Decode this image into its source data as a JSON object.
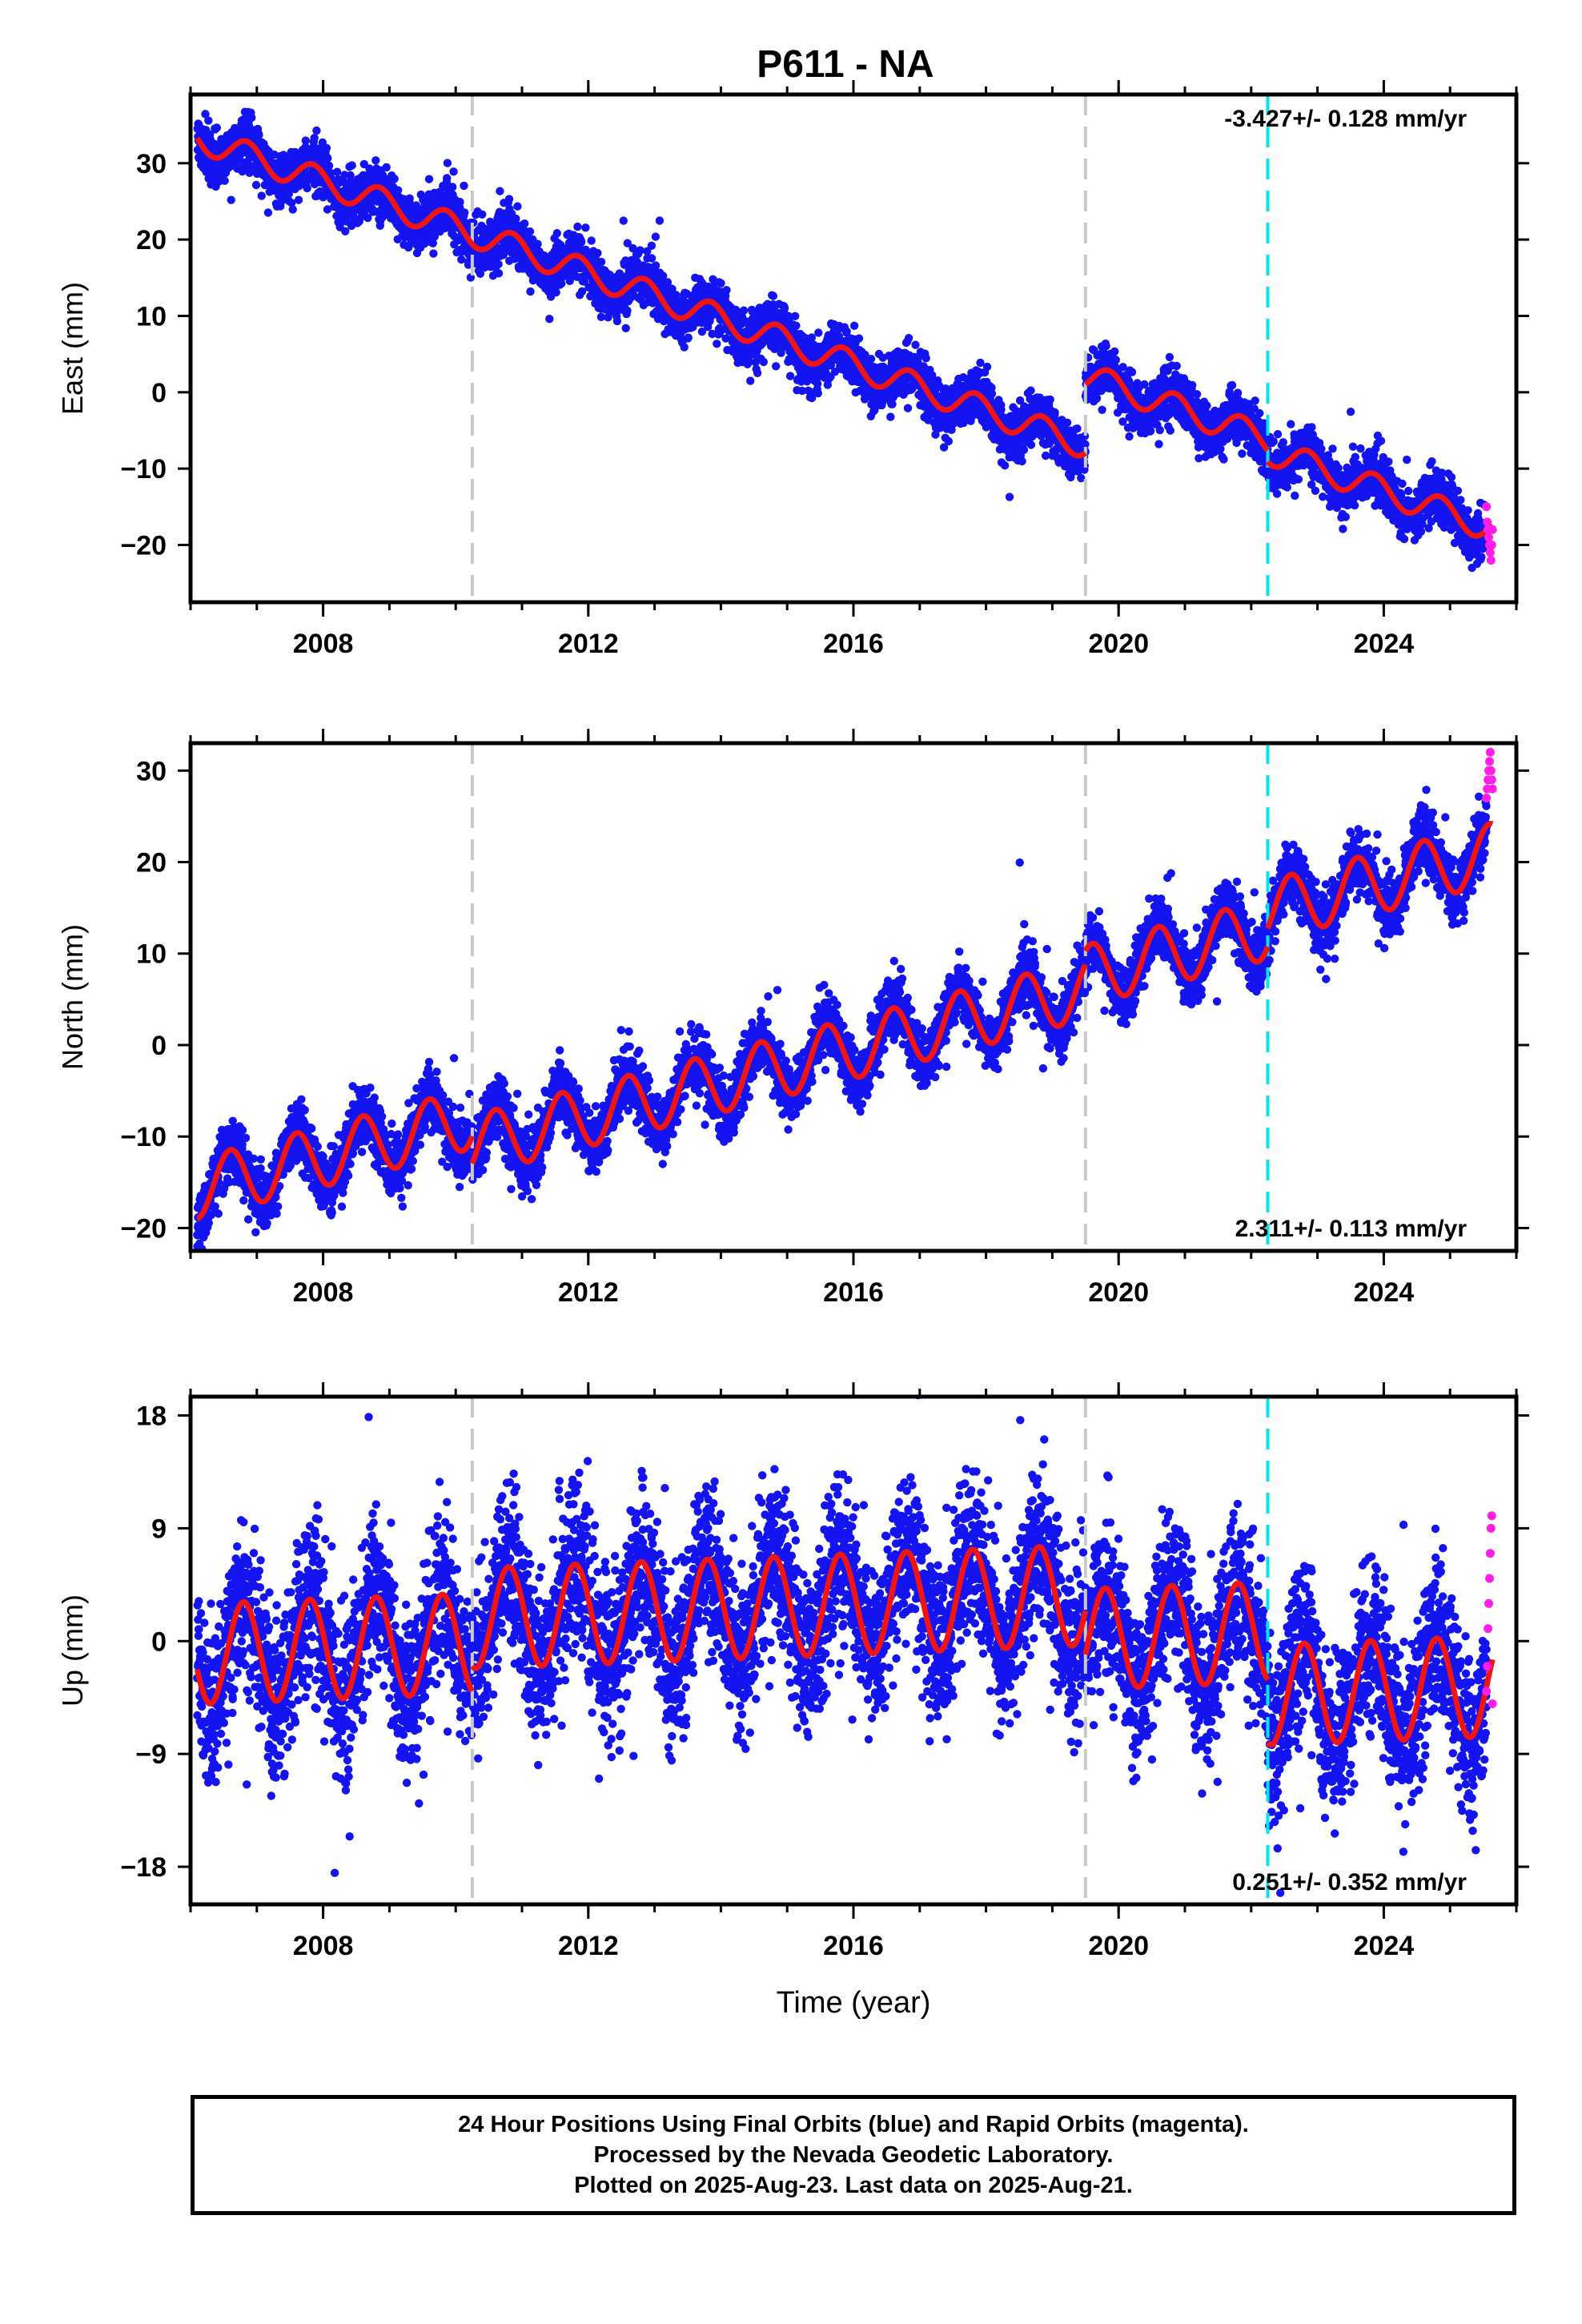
{
  "station_title": "P611 - NA",
  "footer": {
    "line1": "24 Hour Positions Using Final Orbits (blue) and Rapid Orbits (magenta).",
    "line2": "Processed by the Nevada Geodetic Laboratory.",
    "line3": "Plotted on 2025-Aug-23. Last data on 2025-Aug-21."
  },
  "colors": {
    "final_orbits": "#1414f0",
    "rapid_orbits": "#ff1ee6",
    "model_fit": "#f01414",
    "antenna_change": "#c8c8c8",
    "earthquake": "#00e6f0"
  },
  "chart_data": [
    {
      "type": "scatter",
      "panel": "east",
      "ylabel": "East (mm)",
      "xlabel": "",
      "xlim": [
        2006.0,
        2026.0
      ],
      "ylim": [
        -27.5,
        39.0
      ],
      "yticks": [
        -20,
        -10,
        0,
        10,
        20,
        30
      ],
      "xticks": [
        2008,
        2012,
        2016,
        2020,
        2024
      ],
      "rate_label": "-3.427+/- 0.128 mm/yr",
      "rate_position": "top-right",
      "series": [
        {
          "name": "Final Orbits",
          "color": "#1414f0",
          "noise_mm": 1.6,
          "x_range": [
            2006.1,
            2025.55
          ]
        },
        {
          "name": "Rapid Orbits",
          "color": "#ff1ee6",
          "x_range": [
            2025.55,
            2025.64
          ],
          "y_values": [
            -15,
            -17,
            -18,
            -19,
            -20,
            -21,
            -22,
            -20,
            -18
          ]
        },
        {
          "name": "Model Fit",
          "color": "#f01414",
          "model": {
            "t0": 2006.2,
            "y0": 33.0,
            "rate": -3.0,
            "annual_amp": 1.8,
            "annual_phase_year": 0.6,
            "offsets": [
              {
                "year": 2019.5,
                "mm": 9.0
              },
              {
                "year": 2022.25,
                "mm": -1.5
              }
            ]
          }
        }
      ],
      "vertical_lines": [
        {
          "year": 2010.25,
          "kind": "antenna_change",
          "color": "#c8c8c8"
        },
        {
          "year": 2019.5,
          "kind": "antenna_change",
          "color": "#c8c8c8"
        },
        {
          "year": 2022.25,
          "kind": "earthquake",
          "color": "#00e6f0"
        }
      ]
    },
    {
      "type": "scatter",
      "panel": "north",
      "ylabel": "North (mm)",
      "xlabel": "",
      "xlim": [
        2006.0,
        2026.0
      ],
      "ylim": [
        -22.5,
        33.0
      ],
      "yticks": [
        -20,
        -10,
        0,
        10,
        20,
        30
      ],
      "xticks": [
        2008,
        2012,
        2016,
        2020,
        2024
      ],
      "rate_label": "2.311+/- 0.113 mm/yr",
      "rate_position": "bottom-right",
      "series": [
        {
          "name": "Final Orbits",
          "color": "#1414f0",
          "noise_mm": 1.6,
          "x_range": [
            2006.1,
            2025.55
          ]
        },
        {
          "name": "Rapid Orbits",
          "color": "#ff1ee6",
          "x_range": [
            2025.55,
            2025.64
          ],
          "y_values": [
            27,
            28,
            29,
            30,
            31,
            32,
            30,
            29,
            28
          ]
        },
        {
          "name": "Model Fit",
          "color": "#f01414",
          "model": {
            "t0": 2006.2,
            "y0": -15.5,
            "rate": 1.85,
            "annual_amp": 3.3,
            "annual_phase_year": 0.35,
            "offsets": [
              {
                "year": 2010.25,
                "mm": -3.0
              },
              {
                "year": 2019.5,
                "mm": 1.5
              },
              {
                "year": 2022.25,
                "mm": 2.0
              }
            ]
          }
        }
      ],
      "vertical_lines": [
        {
          "year": 2010.25,
          "kind": "antenna_change",
          "color": "#c8c8c8"
        },
        {
          "year": 2019.5,
          "kind": "antenna_change",
          "color": "#c8c8c8"
        },
        {
          "year": 2022.25,
          "kind": "earthquake",
          "color": "#00e6f0"
        }
      ]
    },
    {
      "type": "scatter",
      "panel": "up",
      "ylabel": "Up (mm)",
      "xlabel": "Time (year)",
      "xlim": [
        2006.0,
        2026.0
      ],
      "ylim": [
        -21.0,
        19.5
      ],
      "yticks": [
        -18,
        -9,
        0,
        9,
        18
      ],
      "xticks": [
        2008,
        2012,
        2016,
        2020,
        2024
      ],
      "rate_label": "0.251+/- 0.352 mm/yr",
      "rate_position": "bottom-right",
      "series": [
        {
          "name": "Final Orbits",
          "color": "#1414f0",
          "noise_mm": 3.2,
          "x_range": [
            2006.1,
            2025.55
          ]
        },
        {
          "name": "Rapid Orbits",
          "color": "#ff1ee6",
          "x_range": [
            2025.55,
            2025.64
          ],
          "y_values": [
            -4,
            -2,
            1,
            3,
            5,
            7,
            9,
            10,
            -5
          ]
        },
        {
          "name": "Model Fit",
          "color": "#f01414",
          "model": {
            "t0": 2006.2,
            "y0": -1.0,
            "rate": 0.2,
            "annual_amp": 4.0,
            "annual_phase_year": 0.55,
            "offsets": [
              {
                "year": 2010.25,
                "mm": 2.0
              },
              {
                "year": 2019.5,
                "mm": -3.5
              },
              {
                "year": 2022.25,
                "mm": -5.0
              }
            ]
          }
        }
      ],
      "vertical_lines": [
        {
          "year": 2010.25,
          "kind": "antenna_change",
          "color": "#c8c8c8"
        },
        {
          "year": 2019.5,
          "kind": "antenna_change",
          "color": "#c8c8c8"
        },
        {
          "year": 2022.25,
          "kind": "earthquake",
          "color": "#00e6f0"
        }
      ]
    }
  ]
}
